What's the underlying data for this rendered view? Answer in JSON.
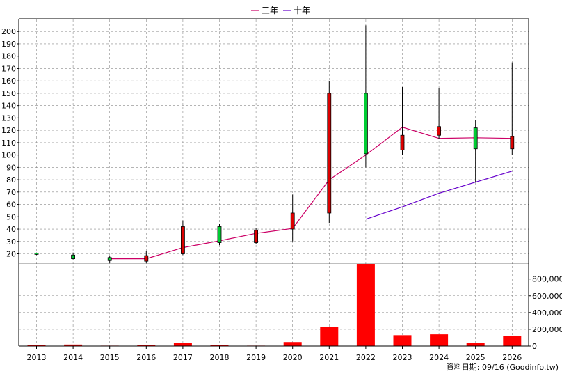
{
  "legend": [
    {
      "label": "三年",
      "color": "#cc0066"
    },
    {
      "label": "十年",
      "color": "#6600cc"
    }
  ],
  "footer": "資料日期: 09/16  (Goodinfo.tw)",
  "colors": {
    "up": "#00cc33",
    "down": "#dd0000",
    "volume": "#ff0000",
    "grid": "#888888",
    "wick": "#000000"
  },
  "chart_data": {
    "type": "candlestick",
    "categories": [
      "2013",
      "2014",
      "2015",
      "2016",
      "2017",
      "2018",
      "2019",
      "2020",
      "2021",
      "2022",
      "2023",
      "2024",
      "2025",
      "2026"
    ],
    "price_axis": {
      "ticks": [
        "20",
        "30",
        "40",
        "50",
        "60",
        "70",
        "80",
        "90",
        "100",
        "110",
        "120",
        "130",
        "140",
        "150",
        "160",
        "170",
        "180",
        "190",
        "200"
      ]
    },
    "volume_axis": {
      "ticks": [
        "0",
        "200,000",
        "400,000",
        "600,000",
        "800,000"
      ]
    },
    "candles": [
      {
        "open": 19.5,
        "close": 20.5,
        "high": 21.0,
        "low": 19.0
      },
      {
        "open": 16.0,
        "close": 19.0,
        "high": 21.0,
        "low": 15.5
      },
      {
        "open": 14.5,
        "close": 17.0,
        "high": 18.0,
        "low": 13.0
      },
      {
        "open": 18.5,
        "close": 14.0,
        "high": 22.0,
        "low": 13.0
      },
      {
        "open": 42.0,
        "close": 20.0,
        "high": 47.0,
        "low": 19.0
      },
      {
        "open": 29.0,
        "close": 42.0,
        "high": 44.0,
        "low": 27.0
      },
      {
        "open": 39.0,
        "close": 29.0,
        "high": 41.0,
        "low": 28.0
      },
      {
        "open": 53.0,
        "close": 40.0,
        "high": 68.0,
        "low": 30.0
      },
      {
        "open": 150.0,
        "close": 53.0,
        "high": 160.0,
        "low": 45.0
      },
      {
        "open": 101.0,
        "close": 150.0,
        "high": 205.0,
        "low": 90.0
      },
      {
        "open": 116.0,
        "close": 104.0,
        "high": 155.0,
        "low": 100.0
      },
      {
        "open": 123.0,
        "close": 116.0,
        "high": 154.0,
        "low": 113.0
      },
      {
        "open": 105.0,
        "close": 122.0,
        "high": 128.0,
        "low": 78.0
      },
      {
        "open": 115.0,
        "close": 105.0,
        "high": 175.0,
        "low": 100.0
      }
    ],
    "three_year_avg": [
      null,
      null,
      16.0,
      16.0,
      25.0,
      30.5,
      36.5,
      40.5,
      80.0,
      100.0,
      122.5,
      113.5,
      114.0,
      113.5
    ],
    "ten_year_avg": [
      null,
      null,
      null,
      null,
      null,
      null,
      null,
      null,
      null,
      48.0,
      58.0,
      69.0,
      78.0,
      87.0
    ],
    "volume": [
      12000,
      18000,
      5000,
      12000,
      40000,
      12000,
      5000,
      48000,
      230000,
      980000,
      130000,
      140000,
      40000,
      120000
    ]
  }
}
